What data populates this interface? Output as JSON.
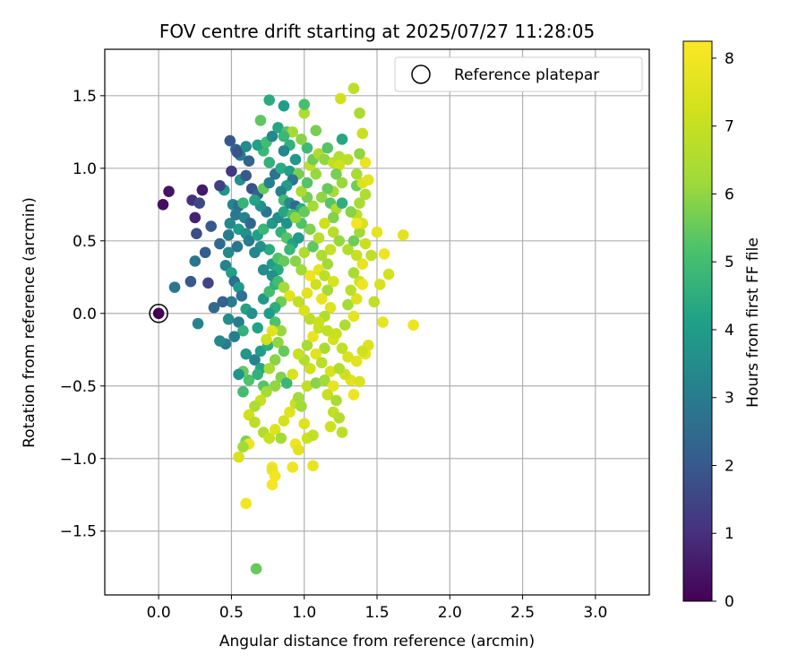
{
  "chart_data": {
    "type": "scatter",
    "title": "FOV centre drift starting at 2025/07/27 11:28:05",
    "xlabel": "Angular distance from reference (arcmin)",
    "ylabel": "Rotation from reference (arcmin)",
    "xlim": [
      -0.37,
      3.37
    ],
    "ylim": [
      -1.94,
      1.82
    ],
    "xticks": [
      "0.0",
      "0.5",
      "1.0",
      "1.5",
      "2.0",
      "2.5",
      "3.0"
    ],
    "xtick_values": [
      0.0,
      0.5,
      1.0,
      1.5,
      2.0,
      2.5,
      3.0
    ],
    "yticks": [
      "−1.5",
      "−1.0",
      "−0.5",
      "0.0",
      "0.5",
      "1.0",
      "1.5"
    ],
    "ytick_values": [
      -1.5,
      -1.0,
      -0.5,
      0.0,
      0.5,
      1.0,
      1.5
    ],
    "grid": true,
    "colormap": "viridis",
    "colorbar": {
      "label": "Hours from first FF file",
      "range": [
        0,
        8.25
      ],
      "ticks": [
        "0",
        "1",
        "2",
        "3",
        "4",
        "5",
        "6",
        "7",
        "8"
      ],
      "tick_values": [
        0,
        1,
        2,
        3,
        4,
        5,
        6,
        7,
        8
      ]
    },
    "legend": {
      "label": "Reference platepar",
      "placement": "top-right"
    },
    "reference_point": {
      "x": 0.0,
      "y": 0.0,
      "hours": 0.0
    },
    "points": [
      [
        0.03,
        0.75,
        0.3
      ],
      [
        0.07,
        0.84,
        0.4
      ],
      [
        0.23,
        0.78,
        1.0
      ],
      [
        0.25,
        0.66,
        0.7
      ],
      [
        0.3,
        0.85,
        0.5
      ],
      [
        0.28,
        0.76,
        1.6
      ],
      [
        0.36,
        0.6,
        2.0
      ],
      [
        0.26,
        0.55,
        1.7
      ],
      [
        0.32,
        0.42,
        2.1
      ],
      [
        0.25,
        0.36,
        2.8
      ],
      [
        0.42,
        0.48,
        2.5
      ],
      [
        0.11,
        0.18,
        2.8
      ],
      [
        0.22,
        0.22,
        2.0
      ],
      [
        0.34,
        0.21,
        1.5
      ],
      [
        0.38,
        0.04,
        2.5
      ],
      [
        0.27,
        -0.07,
        3.2
      ],
      [
        0.48,
        0.54,
        3.0
      ],
      [
        0.49,
        0.62,
        3.4
      ],
      [
        0.45,
        0.85,
        3.8
      ],
      [
        0.42,
        0.88,
        1.4
      ],
      [
        0.5,
        0.98,
        1.2
      ],
      [
        0.49,
        1.19,
        2.0
      ],
      [
        0.53,
        1.13,
        2.4
      ],
      [
        0.56,
        1.09,
        3.1
      ],
      [
        0.62,
        1.05,
        2.3
      ],
      [
        0.6,
        1.15,
        3.5
      ],
      [
        0.54,
        1.11,
        1.9
      ],
      [
        0.56,
        0.92,
        3.6
      ],
      [
        0.6,
        0.95,
        2.0
      ],
      [
        0.64,
        0.86,
        1.8
      ],
      [
        0.68,
        0.82,
        2.2
      ],
      [
        0.51,
        0.75,
        3.3
      ],
      [
        0.55,
        0.74,
        2.6
      ],
      [
        0.58,
        0.76,
        4.7
      ],
      [
        0.53,
        0.68,
        2.9
      ],
      [
        0.59,
        0.66,
        3.2
      ],
      [
        0.63,
        0.62,
        2.4
      ],
      [
        0.55,
        0.58,
        4.0
      ],
      [
        0.6,
        0.55,
        3.6
      ],
      [
        0.62,
        0.5,
        3.0
      ],
      [
        0.54,
        0.46,
        2.8
      ],
      [
        0.48,
        0.42,
        3.4
      ],
      [
        0.46,
        0.33,
        3.2
      ],
      [
        0.5,
        0.28,
        4.1
      ],
      [
        0.52,
        0.22,
        2.6
      ],
      [
        0.55,
        0.18,
        3.9
      ],
      [
        0.57,
        0.12,
        2.7
      ],
      [
        0.5,
        0.08,
        3.0
      ],
      [
        0.44,
        0.08,
        2.2
      ],
      [
        0.48,
        -0.04,
        3.5
      ],
      [
        0.55,
        -0.06,
        3.0
      ],
      [
        0.6,
        0.03,
        4.2
      ],
      [
        0.64,
        0.0,
        3.6
      ],
      [
        0.58,
        -0.12,
        4.6
      ],
      [
        0.52,
        -0.16,
        3.1
      ],
      [
        0.46,
        -0.21,
        3.0
      ],
      [
        0.42,
        -0.19,
        3.4
      ],
      [
        0.6,
        -0.28,
        3.8
      ],
      [
        0.66,
        -0.32,
        3.2
      ],
      [
        0.7,
        -0.38,
        4.3
      ],
      [
        0.58,
        -0.4,
        5.5
      ],
      [
        0.55,
        -0.42,
        3.7
      ],
      [
        0.62,
        -0.46,
        5.2
      ],
      [
        0.68,
        -0.42,
        4.6
      ],
      [
        0.72,
        -0.5,
        5.3
      ],
      [
        0.58,
        -0.54,
        5.0
      ],
      [
        0.7,
        -0.26,
        4.0
      ],
      [
        0.75,
        -0.22,
        4.5
      ],
      [
        0.68,
        -0.1,
        4.2
      ],
      [
        0.72,
        0.1,
        3.8
      ],
      [
        0.76,
        0.15,
        5.0
      ],
      [
        0.8,
        0.2,
        4.6
      ],
      [
        0.72,
        0.3,
        3.5
      ],
      [
        0.78,
        0.34,
        4.0
      ],
      [
        0.82,
        0.38,
        5.2
      ],
      [
        0.76,
        0.44,
        4.4
      ],
      [
        0.7,
        0.46,
        3.7
      ],
      [
        0.66,
        0.42,
        3.3
      ],
      [
        0.68,
        0.54,
        4.1
      ],
      [
        0.72,
        0.58,
        4.8
      ],
      [
        0.78,
        0.62,
        3.9
      ],
      [
        0.82,
        0.66,
        3.5
      ],
      [
        0.86,
        0.7,
        4.3
      ],
      [
        0.74,
        0.7,
        2.8
      ],
      [
        0.7,
        0.74,
        3.6
      ],
      [
        0.66,
        0.78,
        4.2
      ],
      [
        0.72,
        0.86,
        5.5
      ],
      [
        0.76,
        0.9,
        3.1
      ],
      [
        0.8,
        0.96,
        2.7
      ],
      [
        0.84,
        1.0,
        4.4
      ],
      [
        0.76,
        1.04,
        4.6
      ],
      [
        0.72,
        1.12,
        4.8
      ],
      [
        0.68,
        1.16,
        4.1
      ],
      [
        0.74,
        1.18,
        5.0
      ],
      [
        0.78,
        1.22,
        3.4
      ],
      [
        0.82,
        1.28,
        4.3
      ],
      [
        0.7,
        1.33,
        5.4
      ],
      [
        0.76,
        1.47,
        4.4
      ],
      [
        0.86,
        1.43,
        4.0
      ],
      [
        0.88,
        1.25,
        5.3
      ],
      [
        0.92,
        1.25,
        6.3
      ],
      [
        0.86,
        1.22,
        4.8
      ],
      [
        0.9,
        1.16,
        4.6
      ],
      [
        0.86,
        1.12,
        3.3
      ],
      [
        0.94,
        1.06,
        3.8
      ],
      [
        0.9,
        0.98,
        4.1
      ],
      [
        0.96,
        0.96,
        5.7
      ],
      [
        0.92,
        0.92,
        2.8
      ],
      [
        0.88,
        0.88,
        4.0
      ],
      [
        0.84,
        0.84,
        3.2
      ],
      [
        0.86,
        0.78,
        4.9
      ],
      [
        0.9,
        0.76,
        3.5
      ],
      [
        0.94,
        0.74,
        2.5
      ],
      [
        0.98,
        0.72,
        4.4
      ],
      [
        0.92,
        0.68,
        5.1
      ],
      [
        0.88,
        0.62,
        3.7
      ],
      [
        0.84,
        0.56,
        4.6
      ],
      [
        0.88,
        0.52,
        5.3
      ],
      [
        0.92,
        0.48,
        4.2
      ],
      [
        0.96,
        0.52,
        3.9
      ],
      [
        0.9,
        0.44,
        4.8
      ],
      [
        0.86,
        0.36,
        5.5
      ],
      [
        0.82,
        0.3,
        4.4
      ],
      [
        0.78,
        0.26,
        3.6
      ],
      [
        0.82,
        0.22,
        5.0
      ],
      [
        0.86,
        0.18,
        6.3
      ],
      [
        0.9,
        0.12,
        7.6
      ],
      [
        0.84,
        0.08,
        5.6
      ],
      [
        0.8,
        0.04,
        4.5
      ],
      [
        0.76,
        0.0,
        4.0
      ],
      [
        0.8,
        -0.06,
        5.2
      ],
      [
        0.84,
        -0.12,
        6.1
      ],
      [
        0.78,
        -0.12,
        7.6
      ],
      [
        0.74,
        -0.18,
        7.2
      ],
      [
        0.82,
        -0.2,
        6.0
      ],
      [
        0.86,
        -0.26,
        5.5
      ],
      [
        0.8,
        -0.32,
        5.9
      ],
      [
        0.76,
        -0.38,
        6.4
      ],
      [
        0.84,
        -0.44,
        5.8
      ],
      [
        0.88,
        -0.48,
        4.8
      ],
      [
        0.92,
        -0.42,
        7.4
      ],
      [
        0.8,
        -0.5,
        6.0
      ],
      [
        0.74,
        -0.54,
        6.3
      ],
      [
        0.7,
        -0.6,
        7.0
      ],
      [
        0.66,
        -0.64,
        6.5
      ],
      [
        0.62,
        -0.7,
        7.2
      ],
      [
        0.66,
        -0.75,
        6.8
      ],
      [
        0.72,
        -0.82,
        6.6
      ],
      [
        0.76,
        -0.86,
        7.0
      ],
      [
        0.8,
        -0.8,
        7.5
      ],
      [
        0.84,
        -0.86,
        6.3
      ],
      [
        0.86,
        -0.74,
        7.3
      ],
      [
        0.9,
        -0.68,
        7.6
      ],
      [
        0.94,
        -0.62,
        7.0
      ],
      [
        0.98,
        -0.64,
        6.2
      ],
      [
        0.6,
        -0.88,
        5.8
      ],
      [
        0.62,
        -0.9,
        7.9
      ],
      [
        0.58,
        -0.92,
        6.2
      ],
      [
        0.55,
        -0.99,
        7.4
      ],
      [
        0.78,
        -1.06,
        8.1
      ],
      [
        0.78,
        -1.08,
        7.8
      ],
      [
        0.8,
        -1.12,
        8.0
      ],
      [
        0.78,
        -1.18,
        8.1
      ],
      [
        0.92,
        -1.06,
        7.9
      ],
      [
        1.06,
        -1.05,
        7.8
      ],
      [
        0.94,
        -0.9,
        7.9
      ],
      [
        0.96,
        -0.94,
        7.6
      ],
      [
        1.02,
        -0.86,
        7.2
      ],
      [
        1.06,
        -0.84,
        6.9
      ],
      [
        1.0,
        -0.76,
        7.5
      ],
      [
        0.6,
        -1.31,
        8.0
      ],
      [
        0.67,
        -1.76,
        5.5
      ],
      [
        0.96,
        -0.58,
        6.3
      ],
      [
        1.02,
        -0.5,
        6.9
      ],
      [
        1.08,
        -0.48,
        5.9
      ],
      [
        1.04,
        -0.38,
        7.2
      ],
      [
        1.0,
        -0.32,
        6.6
      ],
      [
        0.96,
        -0.28,
        7.0
      ],
      [
        1.02,
        -0.22,
        6.4
      ],
      [
        1.06,
        -0.16,
        7.8
      ],
      [
        1.1,
        -0.1,
        7.0
      ],
      [
        1.04,
        -0.04,
        6.8
      ],
      [
        1.0,
        0.02,
        7.4
      ],
      [
        0.96,
        0.08,
        6.9
      ],
      [
        1.02,
        0.14,
        7.6
      ],
      [
        1.08,
        0.2,
        7.2
      ],
      [
        1.04,
        0.26,
        7.9
      ],
      [
        0.98,
        0.3,
        6.2
      ],
      [
        0.94,
        0.36,
        5.9
      ],
      [
        1.0,
        0.42,
        6.5
      ],
      [
        1.06,
        0.46,
        5.4
      ],
      [
        1.1,
        0.52,
        6.7
      ],
      [
        1.04,
        0.58,
        5.8
      ],
      [
        0.98,
        0.62,
        5.2
      ],
      [
        0.94,
        0.66,
        6.0
      ],
      [
        1.0,
        0.7,
        5.5
      ],
      [
        1.06,
        0.74,
        6.3
      ],
      [
        1.02,
        0.8,
        5.7
      ],
      [
        0.98,
        0.84,
        6.4
      ],
      [
        1.02,
        0.9,
        5.3
      ],
      [
        1.08,
        0.96,
        6.1
      ],
      [
        1.04,
        1.02,
        6.8
      ],
      [
        1.06,
        1.06,
        5.6
      ],
      [
        1.1,
        1.1,
        6.5
      ],
      [
        1.02,
        1.14,
        4.9
      ],
      [
        0.98,
        1.2,
        5.9
      ],
      [
        1.0,
        1.38,
        6.5
      ],
      [
        1.0,
        1.44,
        5.1
      ],
      [
        1.08,
        1.26,
        5.7
      ],
      [
        1.14,
        1.06,
        6.0
      ],
      [
        1.16,
        1.14,
        5.3
      ],
      [
        1.2,
        1.04,
        6.9
      ],
      [
        1.24,
        1.08,
        6.6
      ],
      [
        1.26,
        1.2,
        4.3
      ],
      [
        1.3,
        1.06,
        6.8
      ],
      [
        1.24,
        1.02,
        7.2
      ],
      [
        1.22,
        0.96,
        5.7
      ],
      [
        1.26,
        0.9,
        6.1
      ],
      [
        1.2,
        0.84,
        6.4
      ],
      [
        1.16,
        0.86,
        5.5
      ],
      [
        1.12,
        0.8,
        6.0
      ],
      [
        1.18,
        0.76,
        5.3
      ],
      [
        1.22,
        0.72,
        6.5
      ],
      [
        1.26,
        0.76,
        4.5
      ],
      [
        1.2,
        0.66,
        5.8
      ],
      [
        1.14,
        0.62,
        7.2
      ],
      [
        1.2,
        0.56,
        6.7
      ],
      [
        1.24,
        0.5,
        6.1
      ],
      [
        1.18,
        0.44,
        7.0
      ],
      [
        1.12,
        0.4,
        6.5
      ],
      [
        1.16,
        0.34,
        6.2
      ],
      [
        1.1,
        0.3,
        7.7
      ],
      [
        1.14,
        0.26,
        6.8
      ],
      [
        1.2,
        0.22,
        7.4
      ],
      [
        1.16,
        0.16,
        6.3
      ],
      [
        1.12,
        0.1,
        7.8
      ],
      [
        1.18,
        0.04,
        7.5
      ],
      [
        1.14,
        -0.02,
        6.6
      ],
      [
        1.1,
        -0.06,
        7.1
      ],
      [
        1.16,
        -0.12,
        6.9
      ],
      [
        1.2,
        -0.18,
        7.3
      ],
      [
        1.14,
        -0.24,
        6.4
      ],
      [
        1.08,
        -0.28,
        7.6
      ],
      [
        1.12,
        -0.34,
        6.7
      ],
      [
        1.18,
        -0.4,
        7.4
      ],
      [
        1.14,
        -0.46,
        6.2
      ],
      [
        1.2,
        -0.5,
        7.8
      ],
      [
        1.16,
        -0.56,
        7.0
      ],
      [
        1.22,
        -0.6,
        6.4
      ],
      [
        1.2,
        -0.68,
        6.9
      ],
      [
        1.24,
        -0.72,
        6.6
      ],
      [
        1.18,
        -0.78,
        7.2
      ],
      [
        1.26,
        -0.82,
        6.8
      ],
      [
        1.34,
        -0.56,
        7.9
      ],
      [
        1.32,
        -0.46,
        7.6
      ],
      [
        1.28,
        -0.42,
        7.2
      ],
      [
        1.24,
        -0.38,
        6.6
      ],
      [
        1.3,
        -0.3,
        7.4
      ],
      [
        1.26,
        -0.24,
        6.9
      ],
      [
        1.22,
        -0.14,
        7.1
      ],
      [
        1.28,
        -0.08,
        6.5
      ],
      [
        1.34,
        -0.02,
        7.7
      ],
      [
        1.3,
        0.06,
        6.3
      ],
      [
        1.36,
        0.1,
        7.5
      ],
      [
        1.32,
        0.16,
        6.8
      ],
      [
        1.38,
        0.22,
        7.2
      ],
      [
        1.34,
        0.28,
        6.4
      ],
      [
        1.4,
        0.34,
        7.8
      ],
      [
        1.36,
        0.4,
        7.0
      ],
      [
        1.3,
        0.44,
        6.6
      ],
      [
        1.34,
        0.5,
        5.6
      ],
      [
        1.38,
        0.56,
        6.2
      ],
      [
        1.42,
        0.48,
        7.1
      ],
      [
        1.46,
        0.4,
        6.9
      ],
      [
        1.4,
        0.62,
        7.4
      ],
      [
        1.36,
        0.68,
        6.8
      ],
      [
        1.32,
        0.7,
        5.9
      ],
      [
        1.38,
        0.76,
        6.3
      ],
      [
        1.42,
        0.82,
        6.5
      ],
      [
        1.36,
        0.88,
        5.6
      ],
      [
        1.4,
        0.9,
        7.4
      ],
      [
        1.44,
        0.92,
        7.6
      ],
      [
        1.36,
        0.96,
        6.4
      ],
      [
        1.42,
        1.04,
        7.8
      ],
      [
        1.38,
        1.1,
        6.0
      ],
      [
        1.4,
        1.24,
        7.1
      ],
      [
        1.38,
        1.38,
        6.4
      ],
      [
        1.34,
        1.55,
        6.8
      ],
      [
        1.25,
        1.48,
        7.2
      ],
      [
        1.5,
        0.56,
        7.7
      ],
      [
        1.55,
        0.41,
        7.9
      ],
      [
        1.58,
        0.27,
        7.3
      ],
      [
        1.68,
        0.54,
        7.6
      ],
      [
        1.52,
        0.2,
        7.4
      ],
      [
        1.48,
        0.08,
        6.9
      ],
      [
        1.54,
        -0.06,
        7.7
      ],
      [
        1.75,
        -0.08,
        7.9
      ],
      [
        1.44,
        -0.22,
        7.5
      ],
      [
        1.42,
        -0.28,
        7.8
      ],
      [
        1.4,
        -0.26,
        7.2
      ],
      [
        1.36,
        -0.33,
        7.6
      ],
      [
        1.38,
        -0.47,
        7.4
      ],
      [
        1.36,
        0.62,
        8.0
      ],
      [
        1.4,
        0.2,
        7.9
      ]
    ]
  }
}
